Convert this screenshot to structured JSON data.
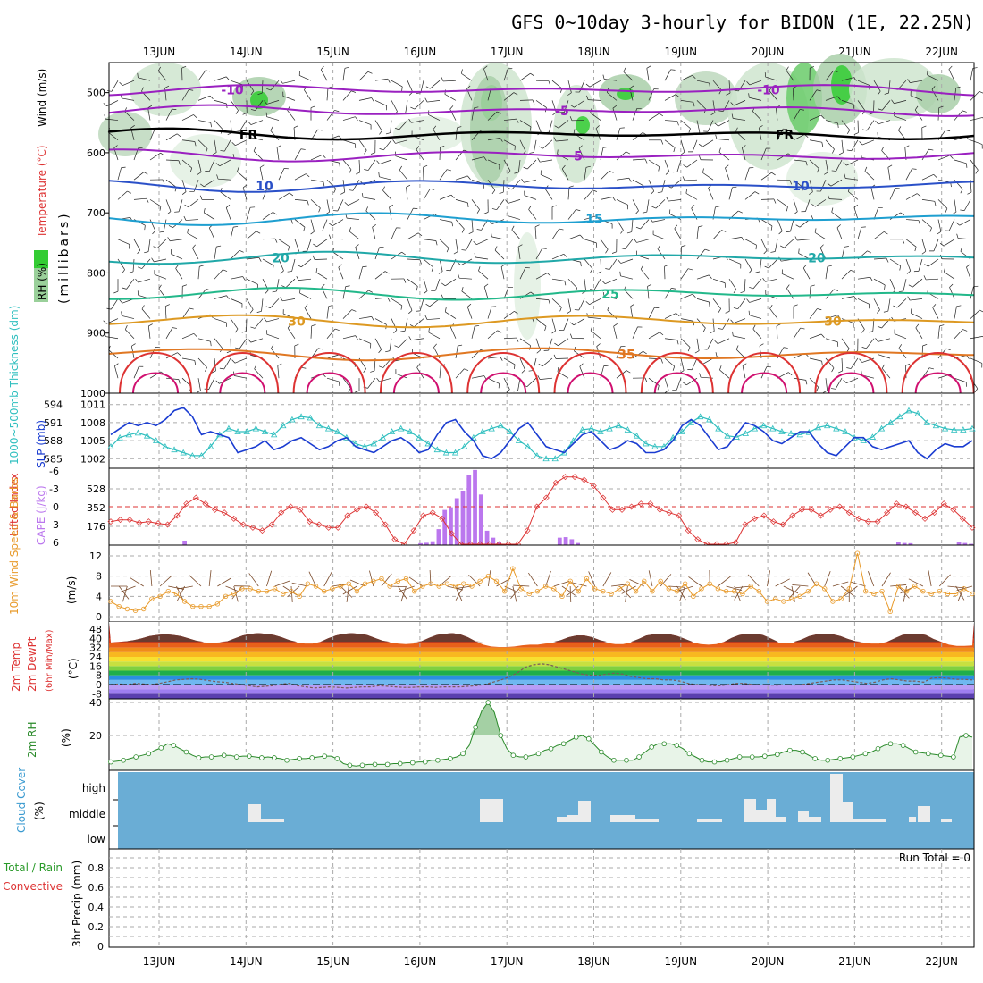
{
  "title": "GFS 0~10day 3-hourly for BIDON (1E, 22.25N)",
  "dates": [
    "13JUN",
    "14JUN",
    "15JUN",
    "16JUN",
    "17JUN",
    "18JUN",
    "19JUN",
    "20JUN",
    "21JUN",
    "22JUN"
  ],
  "colors": {
    "grid": "#aaaaaa",
    "cloud": "#6aadd5",
    "rh_fill": "#e8f4e8",
    "rh_line": "#2a8a2a",
    "slp": "#1a3cd1",
    "thick": "#2fbfbf",
    "li": "#dd3333",
    "cape": "#bb77ee",
    "wind": "#e89a2a",
    "barb": "#7a4a2a"
  },
  "chart_data": [
    {
      "type": "contour",
      "panel": "upper-air",
      "ylabel_parts": [
        "RH (%)",
        "Temperature (°C)",
        "Wind (m/s)"
      ],
      "ylabel_unit": "(millibars)",
      "yticks": [
        "500",
        "600",
        "700",
        "800",
        "900",
        "1000"
      ],
      "y_axis": "pressure, 1000 mb at the bottom, 450 mb at the top",
      "isotherms": [
        {
          "label": "-10",
          "color": "#9a20c0"
        },
        {
          "label": "-5",
          "color": "#9a20c0"
        },
        {
          "label": "FR",
          "color": "#000000"
        },
        {
          "label": "5",
          "color": "#9a20c0"
        },
        {
          "label": "10",
          "color": "#2a50c8"
        },
        {
          "label": "15",
          "color": "#1e9fd0"
        },
        {
          "label": "20",
          "color": "#20a8a8"
        },
        {
          "label": "25",
          "color": "#22b88a"
        },
        {
          "label": "30",
          "color": "#dd9922"
        },
        {
          "label": "35",
          "color": "#e07722"
        }
      ],
      "rh_labels": [
        "30",
        "10",
        "30",
        "30",
        "10"
      ]
    },
    {
      "type": "line",
      "panel": "slp-thickness",
      "ylabel_left": "1000~500mb Thickness (dm)",
      "ylabel_right": "SLP (mb)",
      "yticks_left": [
        "594",
        "591",
        "588",
        "585"
      ],
      "yticks_right": [
        "1011",
        "1008",
        "1005",
        "1002"
      ],
      "series": [
        {
          "name": "SLP (mb)",
          "values": [
            1006,
            1007,
            1008,
            1007.5,
            1008,
            1007.5,
            1008.5,
            1010,
            1010.5,
            1009,
            1006,
            1006.5,
            1006,
            1005.5,
            1003,
            1003.5,
            1004,
            1005,
            1003.5,
            1004,
            1005,
            1005.5,
            1004.5,
            1003.5,
            1004,
            1005,
            1005.5,
            1004,
            1003.5,
            1003,
            1004,
            1005,
            1005.5,
            1004.5,
            1003,
            1003.5,
            1006,
            1008,
            1008.5,
            1006.5,
            1005,
            1002.5,
            1002,
            1003,
            1005,
            1007,
            1008,
            1006,
            1004,
            1003.5,
            1003,
            1004.5,
            1006,
            1006.5,
            1005,
            1003.5,
            1004,
            1005,
            1004.5,
            1003,
            1003,
            1003.5,
            1005,
            1007.5,
            1008.5,
            1007.5,
            1005.5,
            1003.5,
            1004,
            1006,
            1008,
            1007.5,
            1006.5,
            1005,
            1004.5,
            1005.5,
            1006.5,
            1006.5,
            1004.5,
            1003,
            1002.5,
            1004,
            1005.5,
            1005.5,
            1004,
            1003.5,
            1004,
            1004.5,
            1005,
            1003,
            1002,
            1003.5,
            1004.5,
            1004,
            1004,
            1005
          ]
        },
        {
          "name": "Thickness (dm)",
          "values": [
            587,
            588.5,
            589,
            589.3,
            588.8,
            588,
            587,
            586.5,
            586,
            585.5,
            585.5,
            587,
            589,
            590,
            589.5,
            589.5,
            590,
            589.5,
            589,
            590.5,
            591.5,
            592,
            591.8,
            590.5,
            590,
            589.5,
            588.5,
            587.5,
            587,
            587.5,
            588.5,
            589.5,
            590,
            589.5,
            588.5,
            587.5,
            586.5,
            586,
            586,
            587,
            588.5,
            589.5,
            590,
            590.5,
            589.5,
            588,
            587,
            585.5,
            585,
            585,
            586,
            588,
            589.8,
            590,
            589.5,
            590,
            590.5,
            589.8,
            588.8,
            587.5,
            587,
            587,
            588.5,
            589.5,
            591,
            592,
            591.5,
            590,
            588.8,
            588.6,
            589.2,
            590,
            590.5,
            590,
            589.5,
            589.2,
            589,
            589.4,
            590.2,
            590.5,
            590,
            589.5,
            588.5,
            588,
            588.6,
            590,
            591,
            592,
            593,
            592.5,
            591,
            590.5,
            590,
            589.8,
            589.8,
            590
          ]
        }
      ]
    },
    {
      "type": "bar",
      "panel": "cape-li",
      "ylabel_left": "Lifted Index",
      "ylabel_right": "CAPE (J/kg)",
      "yticks_left": [
        "-6",
        "-3",
        "0",
        "3",
        "6"
      ],
      "yticks_right": [
        "528",
        "352",
        "176"
      ],
      "series": [
        {
          "name": "CAPE (J/kg)",
          "values": [
            0,
            0,
            0,
            0,
            0,
            0,
            0,
            0,
            0,
            0,
            0,
            0,
            42,
            0,
            0,
            0,
            0,
            0,
            0,
            0,
            0,
            0,
            0,
            0,
            0,
            0,
            0,
            0,
            0,
            0,
            0,
            0,
            0,
            0,
            0,
            0,
            0,
            0,
            0,
            0,
            0,
            0,
            0,
            0,
            0,
            0,
            0,
            0,
            0,
            0,
            0,
            18,
            22,
            36,
            150,
            330,
            355,
            440,
            510,
            655,
            705,
            475,
            135,
            70,
            30,
            0,
            0,
            0,
            0,
            0,
            0,
            0,
            0,
            0,
            70,
            75,
            55,
            20,
            0,
            0,
            0,
            0,
            0,
            0,
            0,
            0,
            0,
            0,
            0,
            0,
            0,
            0,
            0,
            0,
            0,
            0,
            0,
            0,
            0,
            0,
            0,
            0,
            0,
            0,
            0,
            0,
            0,
            0,
            0,
            0,
            0,
            0,
            0,
            0,
            0,
            0,
            0,
            0,
            0,
            0,
            0,
            0,
            0,
            0,
            0,
            0,
            0,
            0,
            0,
            0,
            30,
            20,
            18,
            0,
            0,
            0,
            0,
            0,
            0,
            0,
            25,
            20,
            12
          ]
        },
        {
          "name": "Lifted Index",
          "values": [
            2.5,
            2.2,
            2.2,
            2.7,
            2.5,
            2.8,
            3,
            1.5,
            -0.5,
            -1.5,
            -0.5,
            0.5,
            1,
            2,
            3,
            3.5,
            4,
            3,
            1,
            0,
            0.5,
            2.5,
            3,
            3.5,
            3.5,
            1.5,
            0.5,
            0,
            1,
            3,
            5.5,
            6.5,
            4,
            1.5,
            1,
            2,
            4.5,
            7,
            7.5,
            7.5,
            6.5,
            6.8,
            7.5,
            6.5,
            4,
            0,
            -1.5,
            -4,
            -5,
            -5,
            -4.5,
            -3.5,
            -1.5,
            0.5,
            0.5,
            0,
            -0.5,
            -0.5,
            0.5,
            1,
            1.5,
            4,
            5.5,
            6.5,
            7.5,
            8,
            6,
            3,
            2,
            1.5,
            2.5,
            3,
            1.5,
            0.5,
            0.5,
            1.5,
            0.5,
            0,
            1,
            2,
            2.5,
            2.5,
            1,
            -0.5,
            0,
            1,
            2,
            1,
            -0.5,
            0.5,
            2,
            3.5
          ]
        }
      ]
    },
    {
      "type": "line",
      "panel": "10m-wind",
      "ylabel": "10m Wind Speed & Barbs",
      "ylabel_unit": "(m/s)",
      "yticks": [
        "12",
        "8",
        "4",
        "0"
      ],
      "series": [
        {
          "name": "10m Wind Speed (m/s)",
          "values": [
            3,
            2,
            1.5,
            1.2,
            1.5,
            3.5,
            4,
            5,
            4.5,
            3,
            2,
            2,
            2,
            2.5,
            4,
            4.5,
            5.5,
            5.5,
            5,
            5,
            5.5,
            4.5,
            5,
            4,
            6.5,
            6,
            5,
            5.5,
            6,
            6.5,
            5,
            6.5,
            7,
            7.5,
            6,
            7,
            7.5,
            5,
            6,
            6.5,
            6,
            6.5,
            6,
            6.5,
            6,
            7,
            8,
            7,
            5,
            9.5,
            5.5,
            4.5,
            5,
            6,
            5.5,
            4,
            7,
            5,
            7.5,
            5.5,
            5,
            4.5,
            5.5,
            6.5,
            5,
            7,
            5,
            7,
            5.5,
            5,
            6.5,
            4,
            5.5,
            6.5,
            5.5,
            5,
            5,
            4.5,
            6,
            5,
            3,
            3.5,
            3,
            3.5,
            4,
            5,
            6.5,
            5.5,
            3,
            3.5,
            5.5,
            12.5,
            5,
            4.5,
            5,
            1,
            6,
            5,
            6,
            5,
            4.5,
            5,
            4.5,
            4.5,
            5.5,
            4.5
          ]
        }
      ]
    },
    {
      "type": "area",
      "panel": "2m-temp",
      "ylabel_parts": [
        "2m Temp",
        "2m DewPt",
        "(6hr Min/Max)"
      ],
      "ylabel_unit": "(°C)",
      "yticks": [
        "48",
        "40",
        "32",
        "24",
        "16",
        "8",
        "0",
        "-8"
      ],
      "series": [
        {
          "name": "2m Temp max (°C)",
          "values": [
            36.5,
            37,
            37.5,
            38.5,
            40,
            42,
            43,
            43.5,
            43,
            42,
            40,
            38,
            36.5,
            36.2,
            36.5,
            37.5,
            40,
            42.5,
            44,
            44.5,
            44,
            43,
            41,
            38.5,
            36.5,
            35.5,
            35.5,
            37,
            40,
            42.5,
            44,
            44.5,
            44,
            43,
            40.5,
            38,
            36.5,
            35.5,
            35,
            35.5,
            37.5,
            40.5,
            43,
            44,
            44.5,
            43.5,
            41,
            37.5,
            34.5,
            33,
            32.5,
            32.5,
            33,
            34,
            34.5,
            34.5,
            35.5,
            36,
            38.5,
            41,
            42.5,
            42.5,
            41,
            38.5,
            36,
            35,
            35,
            36.5,
            39.5,
            42.5,
            43.5,
            44,
            43.5,
            42,
            39.5,
            36.5,
            35,
            34.5,
            35,
            37,
            40.5,
            43,
            44,
            44,
            43,
            40,
            36.5,
            35.5,
            36.5,
            39,
            42,
            43.5,
            44,
            43.5,
            42,
            39.5,
            37.5,
            36,
            35.5,
            35.5,
            37,
            40,
            43,
            44,
            44,
            43,
            39.5,
            37,
            34.5,
            33.5,
            33.5,
            33.8
          ]
        },
        {
          "name": "2m DewPt (°C)",
          "values": [
            0,
            0.5,
            0,
            1,
            0.5,
            0,
            1,
            2.5,
            4,
            4.5,
            5,
            4.5,
            3.5,
            2.5,
            2,
            1,
            0,
            -1,
            -2,
            -1.5,
            -1,
            0.5,
            1,
            -1,
            -2,
            -3,
            -2.5,
            -2,
            -2.5,
            -3,
            -2.5,
            -2,
            -2,
            -1,
            -1.5,
            -2,
            -2.5,
            -2.5,
            -2,
            -2,
            -2.5,
            -2,
            -2,
            -2,
            -1.5,
            -1,
            0,
            2,
            4,
            6.5,
            10,
            15,
            17,
            18,
            17,
            15,
            13,
            11,
            9,
            8,
            8,
            9,
            10,
            9,
            7,
            6,
            5,
            5,
            4,
            4,
            3,
            1,
            0,
            0,
            -1,
            -1,
            0,
            1,
            1,
            0,
            0,
            -0.5,
            -0.5,
            0,
            -0.5,
            0,
            1,
            2,
            3,
            4,
            4,
            3,
            2,
            1,
            2,
            4,
            5,
            4,
            3,
            3,
            2,
            5.5,
            6,
            5.5,
            4.5,
            4.5,
            4
          ]
        }
      ]
    },
    {
      "type": "area",
      "panel": "2m-rh",
      "ylabel": "2m RH",
      "ylabel_unit": "(%)",
      "yticks": [
        "40",
        "20"
      ],
      "series": [
        {
          "name": "2m RH (%)",
          "values": [
            4,
            4.5,
            5,
            6,
            7,
            8,
            9,
            11,
            12.5,
            15,
            14,
            12,
            10,
            8,
            6.5,
            7,
            7,
            7.5,
            8,
            8,
            7,
            7.5,
            7.5,
            7,
            6.5,
            7,
            6.5,
            6,
            5,
            5.5,
            6,
            6,
            6.5,
            7,
            7.5,
            7.5,
            6,
            3,
            2,
            1.5,
            2,
            2.5,
            2.5,
            2.5,
            2.5,
            3,
            3,
            3.5,
            3.5,
            4,
            4,
            5,
            5,
            5.5,
            6,
            7,
            9,
            14,
            25,
            35,
            40,
            34,
            20,
            12,
            8,
            7,
            7,
            8,
            9,
            11,
            12,
            14,
            15,
            17,
            19,
            20,
            18,
            14,
            10,
            7,
            5,
            5,
            5,
            5,
            7,
            10,
            13,
            15,
            15,
            15,
            14,
            12,
            9,
            7,
            5,
            4,
            4,
            4,
            5,
            6,
            7,
            7,
            7,
            7,
            7.5,
            8,
            8.5,
            10,
            11,
            11,
            10,
            8,
            6,
            5,
            5,
            5.5,
            6,
            6.5,
            7,
            8,
            9,
            10,
            12,
            14,
            15,
            15,
            14,
            12,
            10,
            9.5,
            9,
            8.5,
            8,
            7.5,
            7,
            19,
            20,
            19
          ]
        }
      ]
    },
    {
      "type": "bar",
      "panel": "cloud-cover",
      "ylabel": "Cloud Cover",
      "ylabel_unit": "(%)",
      "yticks": [
        "high",
        "middle",
        "low"
      ],
      "series": [
        {
          "name": "high",
          "values": []
        },
        {
          "name": "middle",
          "values": []
        },
        {
          "name": "low",
          "values": []
        }
      ]
    },
    {
      "type": "bar",
      "panel": "precip",
      "ylabel_parts": [
        "Total / Rain",
        "Convective"
      ],
      "ylabel_full": "3hr Precip (mm)",
      "yticks": [
        "0.8",
        "0.6",
        "0.4",
        "0.2",
        "0"
      ],
      "annotation": "Run Total = 0",
      "series": []
    }
  ]
}
